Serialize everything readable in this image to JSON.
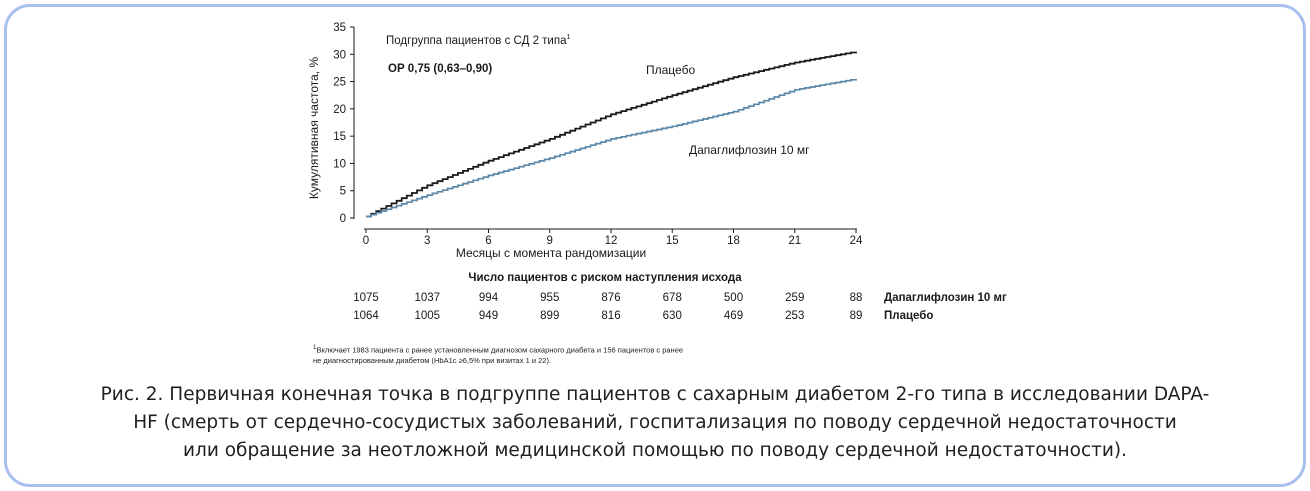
{
  "chart_data": {
    "type": "line",
    "ylabel": "Кумулятивная частота, %",
    "xlabel": "Месяцы с момента рандомизации",
    "subgroup_title": "Подгруппа пациентов с СД 2 типа",
    "subgroup_sup": "1",
    "hazard_ratio": "ОР 0,75 (0,63–0,90)",
    "ylim": [
      0,
      35
    ],
    "yticks": [
      "0",
      "5",
      "10",
      "15",
      "20",
      "25",
      "30",
      "35"
    ],
    "xlim": [
      0,
      24
    ],
    "xticks": [
      "0",
      "3",
      "6",
      "9",
      "12",
      "15",
      "18",
      "21",
      "24"
    ],
    "x": [
      0,
      3,
      6,
      9,
      12,
      15,
      18,
      21,
      24
    ],
    "series": [
      {
        "name": "Плацебо",
        "color": "#1a1a1a",
        "values": [
          0.3,
          6.0,
          10.5,
          14.5,
          19.0,
          22.5,
          25.8,
          28.5,
          30.5
        ]
      },
      {
        "name": "Дапаглифлозин  10 мг",
        "color": "#5b87a8",
        "values": [
          0.3,
          4.2,
          7.8,
          11.0,
          14.5,
          16.8,
          19.5,
          23.5,
          25.5
        ]
      }
    ],
    "risk_table": {
      "title": "Число пациентов с риском наступления исхода",
      "rows": [
        {
          "label": "Дапаглифлозин 10 мг",
          "values": [
            "1075",
            "1037",
            "994",
            "955",
            "876",
            "678",
            "500",
            "259",
            "88"
          ]
        },
        {
          "label": "Плацебо",
          "values": [
            "1064",
            "1005",
            "949",
            "899",
            "816",
            "630",
            "469",
            "253",
            "89"
          ]
        }
      ]
    }
  },
  "footnote": {
    "sup": "1",
    "line1": "Включает 1983 пациента с ранее установленным диагнозом сахарного диабета и 156 пациентов с ранее",
    "line2": "не диагностированным диабетом (HbA1c ≥6,5% при визитах 1 и 22)."
  },
  "caption": {
    "line1": "Рис. 2. Первичная конечная точка в подгруппе пациентов с сахарным диабетом 2-го типа в исследовании DAPA-",
    "line2": "HF (смерть от сердечно-сосудистых заболеваний, госпитализация по поводу сердечной недостаточности",
    "line3": "или обращение за неотложной медицинской помощью по поводу сердечной недостаточности)."
  }
}
